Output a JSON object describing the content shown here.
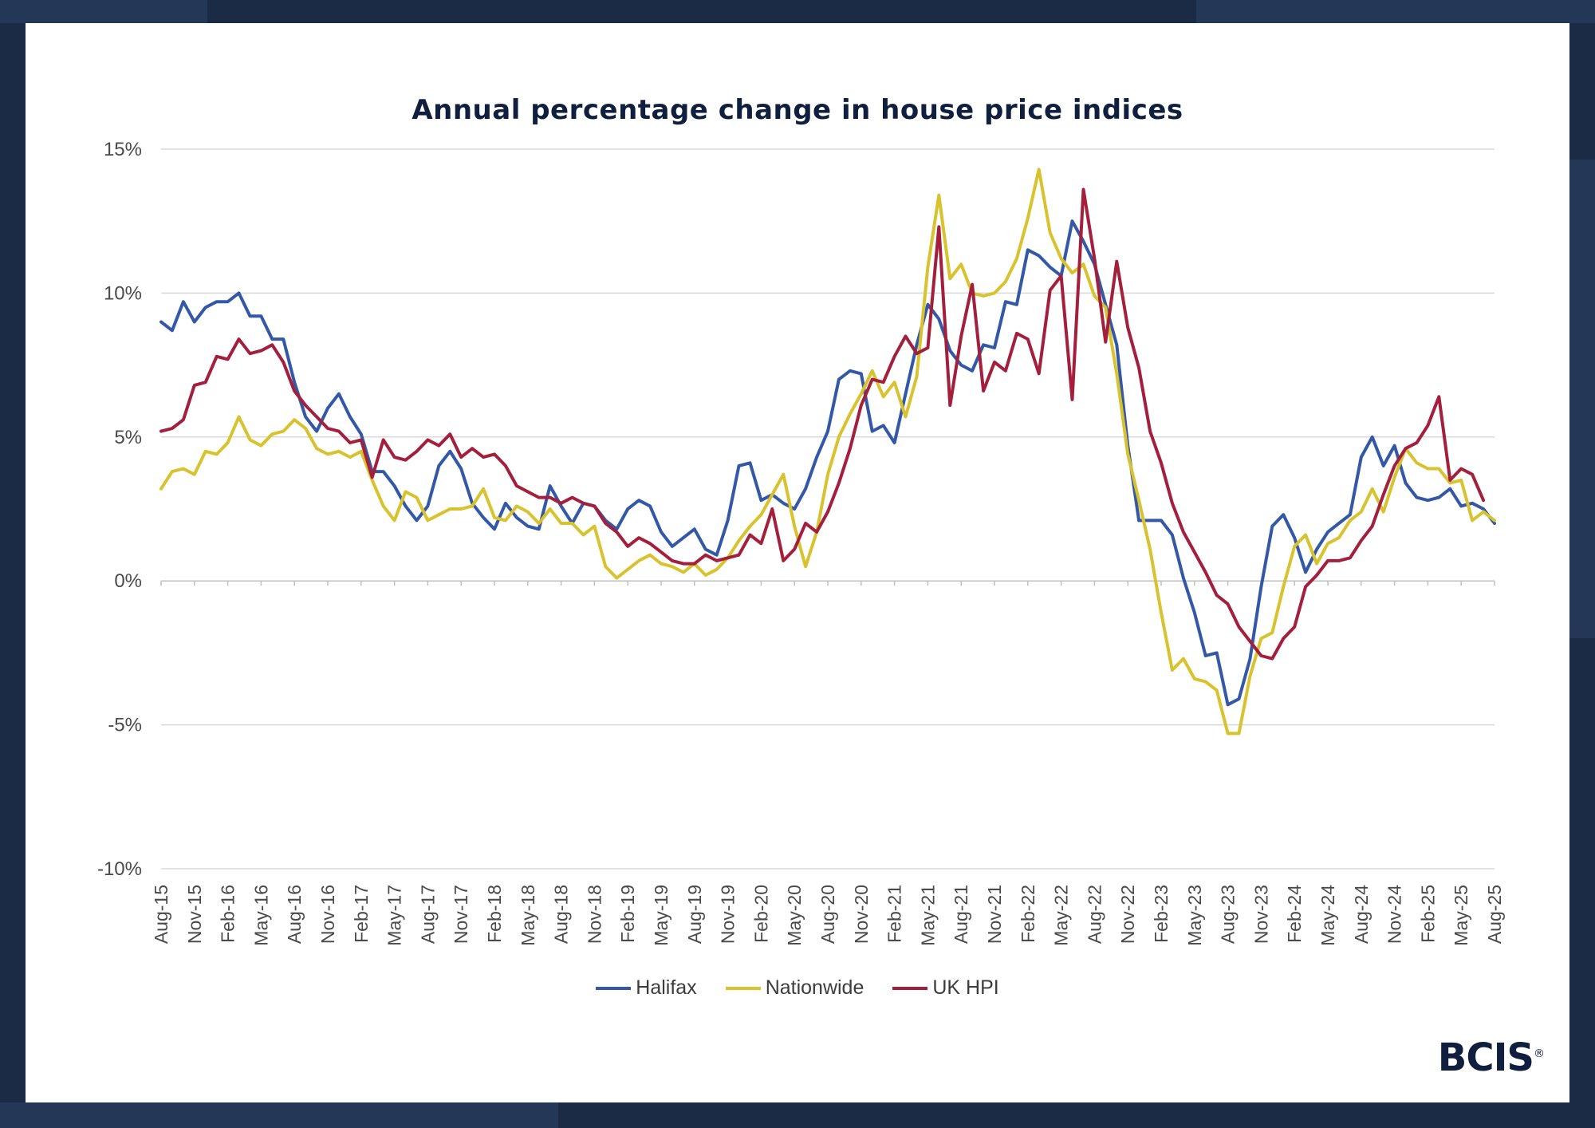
{
  "brand": {
    "logo_text": "BCIS",
    "registered_mark": "®"
  },
  "chart_data": {
    "type": "line",
    "title": "Annual percentage change in house price indices",
    "xlabel": "",
    "ylabel": "",
    "ylim": [
      -10,
      15
    ],
    "yticks": [
      "15%",
      "10%",
      "5%",
      "0%",
      "-5%",
      "-10%"
    ],
    "ytick_values": [
      15,
      10,
      5,
      0,
      -5,
      -10
    ],
    "x_tick_labels": [
      "Aug-15",
      "Nov-15",
      "Feb-16",
      "May-16",
      "Aug-16",
      "Nov-16",
      "Feb-17",
      "May-17",
      "Aug-17",
      "Nov-17",
      "Feb-18",
      "May-18",
      "Aug-18",
      "Nov-18",
      "Feb-19",
      "May-19",
      "Aug-19",
      "Nov-19",
      "Feb-20",
      "May-20",
      "Aug-20",
      "Nov-20",
      "Feb-21",
      "May-21",
      "Aug-21",
      "Nov-21",
      "Feb-22",
      "May-22",
      "Aug-22",
      "Nov-22",
      "Feb-23",
      "May-23",
      "Aug-23",
      "Nov-23",
      "Feb-24",
      "May-24",
      "Aug-24",
      "Nov-24",
      "Feb-25",
      "May-25",
      "Aug-25"
    ],
    "x_start": "Aug-15",
    "grid": true,
    "legend_position": "bottom",
    "series": [
      {
        "name": "Halifax",
        "color": "#3458a8",
        "values": [
          9.0,
          8.7,
          9.7,
          9.0,
          9.5,
          9.7,
          9.7,
          10.0,
          9.2,
          9.2,
          8.4,
          8.4,
          6.9,
          5.7,
          5.2,
          6.0,
          6.5,
          5.7,
          5.1,
          3.8,
          3.8,
          3.3,
          2.6,
          2.1,
          2.6,
          4.0,
          4.5,
          3.9,
          2.7,
          2.2,
          1.8,
          2.7,
          2.2,
          1.9,
          1.8,
          3.3,
          2.6,
          2.0,
          2.7,
          2.6,
          2.1,
          1.8,
          2.5,
          2.8,
          2.6,
          1.7,
          1.2,
          1.5,
          1.8,
          1.1,
          0.9,
          2.1,
          4.0,
          4.1,
          2.8,
          3.0,
          2.7,
          2.5,
          3.2,
          4.3,
          5.2,
          7.0,
          7.3,
          7.2,
          5.2,
          5.4,
          4.8,
          6.5,
          8.2,
          9.6,
          9.1,
          8.0,
          7.5,
          7.3,
          8.2,
          8.1,
          9.7,
          9.6,
          11.5,
          11.3,
          10.9,
          10.6,
          12.5,
          11.8,
          11.0,
          9.6,
          8.2,
          4.7,
          2.1,
          2.1,
          2.1,
          1.6,
          0.1,
          -1.1,
          -2.6,
          -2.5,
          -4.3,
          -4.1,
          -2.7,
          -0.2,
          1.9,
          2.3,
          1.5,
          0.3,
          1.1,
          1.7,
          2.0,
          2.3,
          4.3,
          5.0,
          4.0,
          4.7,
          3.4,
          2.9,
          2.8,
          2.9,
          3.2,
          2.6,
          2.7,
          2.5,
          2.0
        ]
      },
      {
        "name": "Nationwide",
        "color": "#d8c32e",
        "values": [
          3.2,
          3.8,
          3.9,
          3.7,
          4.5,
          4.4,
          4.8,
          5.7,
          4.9,
          4.7,
          5.1,
          5.2,
          5.6,
          5.3,
          4.6,
          4.4,
          4.5,
          4.3,
          4.5,
          3.5,
          2.6,
          2.1,
          3.1,
          2.9,
          2.1,
          2.3,
          2.5,
          2.5,
          2.6,
          3.2,
          2.2,
          2.1,
          2.6,
          2.4,
          2.0,
          2.5,
          2.0,
          2.0,
          1.6,
          1.9,
          0.5,
          0.1,
          0.4,
          0.7,
          0.9,
          0.6,
          0.5,
          0.3,
          0.6,
          0.2,
          0.4,
          0.8,
          1.4,
          1.9,
          2.3,
          3.0,
          3.7,
          1.9,
          0.5,
          1.7,
          3.7,
          5.0,
          5.8,
          6.5,
          7.3,
          6.4,
          6.9,
          5.7,
          7.1,
          10.9,
          13.4,
          10.5,
          11.0,
          10.0,
          9.9,
          10.0,
          10.4,
          11.2,
          12.6,
          14.3,
          12.1,
          11.2,
          10.7,
          11.0,
          9.9,
          9.5,
          7.2,
          4.4,
          2.8,
          1.1,
          -1.1,
          -3.1,
          -2.7,
          -3.4,
          -3.5,
          -3.8,
          -5.3,
          -5.3,
          -3.3,
          -2.0,
          -1.8,
          -0.2,
          1.2,
          1.6,
          0.6,
          1.3,
          1.5,
          2.1,
          2.4,
          3.2,
          2.4,
          3.6,
          4.6,
          4.1,
          3.9,
          3.9,
          3.4,
          3.5,
          2.1,
          2.4,
          2.1
        ]
      },
      {
        "name": "UK HPI",
        "color": "#a31f3c",
        "values": [
          5.2,
          5.3,
          5.6,
          6.8,
          6.9,
          7.8,
          7.7,
          8.4,
          7.9,
          8.0,
          8.2,
          7.6,
          6.6,
          6.1,
          5.7,
          5.3,
          5.2,
          4.8,
          4.9,
          3.6,
          4.9,
          4.3,
          4.2,
          4.5,
          4.9,
          4.7,
          5.1,
          4.3,
          4.6,
          4.3,
          4.4,
          4.0,
          3.3,
          3.1,
          2.9,
          2.9,
          2.7,
          2.9,
          2.7,
          2.6,
          2.0,
          1.7,
          1.2,
          1.5,
          1.3,
          1.0,
          0.7,
          0.6,
          0.6,
          0.9,
          0.7,
          0.8,
          0.9,
          1.6,
          1.3,
          2.5,
          0.7,
          1.1,
          2.0,
          1.7,
          2.4,
          3.4,
          4.6,
          6.1,
          7.0,
          6.9,
          7.8,
          8.5,
          7.9,
          8.1,
          12.3,
          6.1,
          8.5,
          10.3,
          6.6,
          7.6,
          7.3,
          8.6,
          8.4,
          7.2,
          10.1,
          10.6,
          6.3,
          13.6,
          11.2,
          8.3,
          11.1,
          8.8,
          7.4,
          5.2,
          4.1,
          2.7,
          1.7,
          1.0,
          0.3,
          -0.5,
          -0.8,
          -1.6,
          -2.1,
          -2.6,
          -2.7,
          -2.0,
          -1.6,
          -0.2,
          0.2,
          0.7,
          0.7,
          0.8,
          1.4,
          1.9,
          3.0,
          4.0,
          4.6,
          4.8,
          5.4,
          6.4,
          3.5,
          3.9,
          3.7,
          2.8
        ]
      }
    ]
  }
}
